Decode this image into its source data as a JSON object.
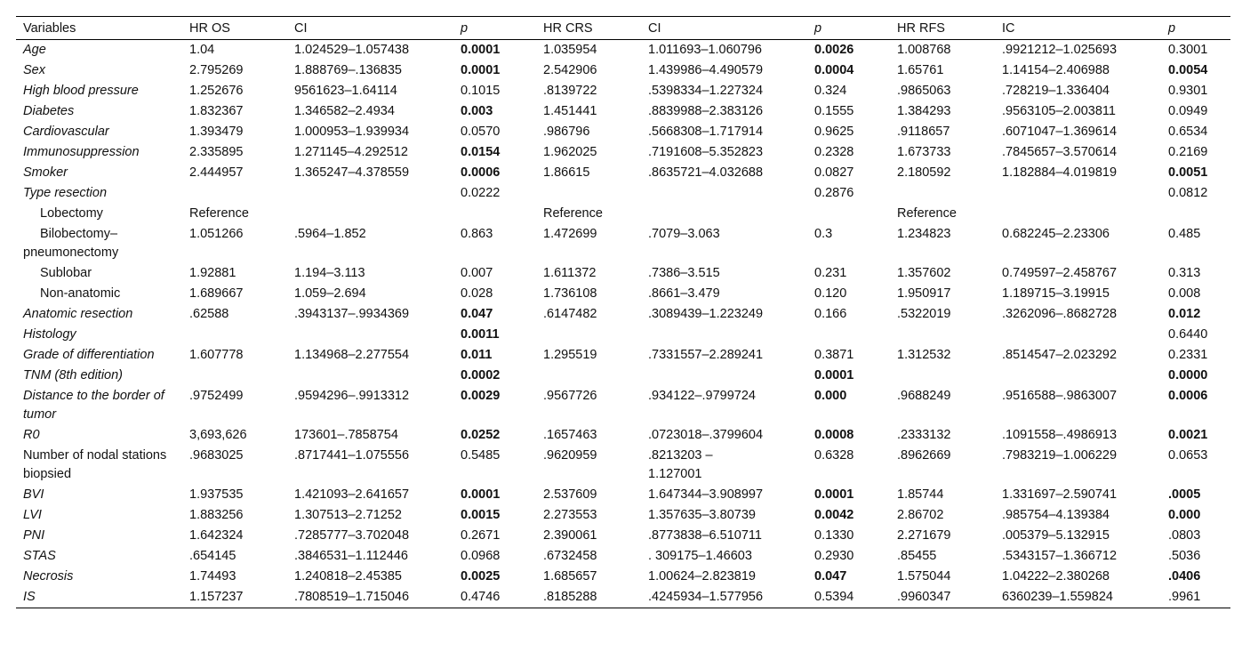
{
  "table": {
    "header": [
      "Variables",
      "HR OS",
      "CI",
      "p",
      "HR CRS",
      "CI",
      "p",
      "HR RFS",
      "IC",
      "p"
    ],
    "rows": [
      [
        "Age",
        "1.04",
        "1.024529–1.057438",
        "0.0001",
        "1.035954",
        "1.011693–1.060796",
        "0.0026",
        "1.008768",
        ".9921212–1.025693",
        "0.3001"
      ],
      [
        "Sex",
        "2.795269",
        "1.888769–.136835",
        "0.0001",
        "2.542906",
        "1.439986–4.490579",
        "0.0004",
        "1.65761",
        "1.14154–2.406988",
        "0.0054"
      ],
      [
        "High blood pressure",
        "1.252676",
        "9561623–1.64114",
        "0.1015",
        ".8139722",
        ".5398334–1.227324",
        "0.324",
        ".9865063",
        ".728219–1.336404",
        "0.9301"
      ],
      [
        "Diabetes",
        "1.832367",
        "1.346582–2.4934",
        "0.003",
        "1.451441",
        ".8839988–2.383126",
        "0.1555",
        "1.384293",
        ".9563105–2.003811",
        "0.0949"
      ],
      [
        "Cardiovascular",
        "1.393479",
        "1.000953–1.939934",
        "0.0570",
        ".986796",
        ".5668308–1.717914",
        "0.9625",
        ".9118657",
        ".6071047–1.369614",
        "0.6534"
      ],
      [
        "Immunosuppression",
        "2.335895",
        "1.271145–4.292512",
        "0.0154",
        "1.962025",
        ".7191608–5.352823",
        "0.2328",
        "1.673733",
        ".7845657–3.570614",
        "0.2169"
      ],
      [
        "Smoker",
        "2.444957",
        "1.365247–4.378559",
        "0.0006",
        "1.86615",
        ".8635721–4.032688",
        "0.0827",
        "2.180592",
        "1.182884–4.019819",
        "0.0051"
      ],
      [
        "Type resection",
        null,
        null,
        "0.0222",
        null,
        null,
        "0.2876",
        null,
        null,
        "0.0812"
      ],
      [
        "Lobectomy",
        "Reference",
        null,
        null,
        "Reference",
        null,
        null,
        "Reference",
        null,
        null
      ],
      [
        "Bilobectomy–pneumonectomy",
        "1.051266",
        ".5964–1.852",
        "0.863",
        "1.472699",
        ".7079–3.063",
        "0.3",
        "1.234823",
        "0.682245–2.23306",
        "0.485"
      ],
      [
        "Sublobar",
        "1.92881",
        "1.194–3.113",
        "0.007",
        "1.611372",
        ".7386–3.515",
        "0.231",
        "1.357602",
        "0.749597–2.458767",
        "0.313"
      ],
      [
        "Non-anatomic",
        "1.689667",
        "1.059–2.694",
        "0.028",
        "1.736108",
        ".8661–3.479",
        "0.120",
        "1.950917",
        "1.189715–3.19915",
        "0.008"
      ],
      [
        "Anatomic resection",
        ".62588",
        ".3943137–.9934369",
        "0.047",
        ".6147482",
        ".3089439–1.223249",
        "0.166",
        ".5322019",
        ".3262096–.8682728",
        "0.012"
      ],
      [
        "Histology",
        null,
        null,
        "0.0011",
        null,
        null,
        null,
        null,
        null,
        "0.6440"
      ],
      [
        "Grade of differentiation",
        "1.607778",
        "1.134968–2.277554",
        "0.011",
        "1.295519",
        ".7331557–2.289241",
        "0.3871",
        "1.312532",
        ".8514547–2.023292",
        "0.2331"
      ],
      [
        "TNM (8th edition)",
        null,
        null,
        "0.0002",
        null,
        null,
        "0.0001",
        null,
        null,
        "0.0000"
      ],
      [
        "Distance to the border of tumor",
        ".9752499",
        ".9594296–.9913312",
        "0.0029",
        ".9567726",
        ".934122–.9799724",
        "0.000",
        ".9688249",
        ".9516588–.9863007",
        "0.0006"
      ],
      [
        "R0",
        "3,693,626",
        "173601–.7858754",
        "0.0252",
        ".1657463",
        ".0723018–.3799604",
        "0.0008",
        ".2333132",
        ".1091558–.4986913",
        "0.0021"
      ],
      [
        "Number of nodal stations biopsied",
        ".9683025",
        ".8717441–1.075556",
        "0.5485",
        ".9620959",
        ".8213203 – 1.127001",
        "0.6328",
        ".8962669",
        ".7983219–1.006229",
        "0.0653"
      ],
      [
        "BVI",
        "1.937535",
        "1.421093–2.641657",
        "0.0001",
        "2.537609",
        "1.647344–3.908997",
        "0.0001",
        "1.85744",
        "1.331697–2.590741",
        ".0005"
      ],
      [
        "LVI",
        "1.883256",
        "1.307513–2.71252",
        "0.0015",
        "2.273553",
        "1.357635–3.80739",
        "0.0042",
        "2.86702",
        ".985754–4.139384",
        "0.000"
      ],
      [
        "PNI",
        "1.642324",
        ".7285777–3.702048",
        "0.2671",
        "2.390061",
        ".8773838–6.510711",
        "0.1330",
        "2.271679",
        ".005379–5.132915",
        ".0803"
      ],
      [
        "STAS",
        ".654145",
        ".3846531–1.112446",
        "0.0968",
        ".6732458",
        ". 309175–1.46603",
        "0.2930",
        ".85455",
        ".5343157–1.366712",
        ".5036"
      ],
      [
        "Necrosis",
        "1.74493",
        "1.240818–2.45385",
        "0.0025",
        "1.685657",
        "1.00624–2.823819",
        "0.047",
        "1.575044",
        "1.04222–2.380268",
        ".0406"
      ],
      [
        "IS",
        "1.157237",
        ".7808519–1.715046",
        "0.4746",
        ".8185288",
        ".4245934–1.577956",
        "0.5394",
        ".9960347",
        "6360239–1.559824",
        ".9961"
      ]
    ]
  }
}
